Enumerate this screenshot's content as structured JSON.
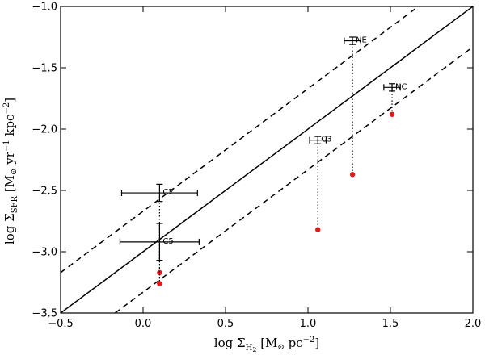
{
  "chart_data": {
    "type": "scatter",
    "xlabel": "log Σ_H2 [M⊙ pc^−2]",
    "ylabel": "log Σ_SFR [M⊙ yr^−1 kpc^−2]",
    "xlabel_parts": {
      "main": "log Σ",
      "sub": "H",
      "subsub": "2",
      "unit_open": " [M",
      "unit_sun": "⊙",
      "unit_mid": " pc",
      "unit_exp": "−2",
      "unit_close": "]"
    },
    "ylabel_parts": {
      "main": "log Σ",
      "sub": "SFR",
      "unit_open": " [M",
      "unit_sun": "⊙",
      "unit_mid1": " yr",
      "unit_exp1": "−1",
      "unit_mid2": " kpc",
      "unit_exp2": "−2",
      "unit_close": "]"
    },
    "xlim": [
      -0.5,
      2.0
    ],
    "ylim": [
      -3.5,
      -1.0
    ],
    "xticks": [
      -0.5,
      0.0,
      0.5,
      1.0,
      1.5,
      2.0
    ],
    "xtick_labels": [
      "−0.5",
      "0.0",
      "0.5",
      "1.0",
      "1.5",
      "2.0"
    ],
    "yticks": [
      -3.5,
      -3.0,
      -2.5,
      -2.0,
      -1.5,
      -1.0
    ],
    "ytick_labels": [
      "−3.5",
      "−3.0",
      "−2.5",
      "−2.0",
      "−1.5",
      "−1.0"
    ],
    "fit_line": {
      "slope": 1.0,
      "intercept": -3.0,
      "style": "solid"
    },
    "scatter_lines": [
      {
        "slope": 1.0,
        "intercept": -2.67,
        "style": "dashed"
      },
      {
        "slope": 1.0,
        "intercept": -3.33,
        "style": "dashed"
      }
    ],
    "points": [
      {
        "label": "C2",
        "x": 0.1,
        "y": -2.52,
        "xerr": [
          0.23,
          0.23
        ],
        "yerr": [
          0.07,
          0.07
        ],
        "corrected_y": [
          -3.17,
          -3.26
        ]
      },
      {
        "label": "C5",
        "x": 0.1,
        "y": -2.92,
        "xerr": [
          0.24,
          0.24
        ],
        "yerr": [
          0.15,
          0.15
        ],
        "corrected_y": [
          -3.26
        ]
      },
      {
        "label": "C3",
        "x": 1.06,
        "y": -2.09,
        "xerr": [
          0.05,
          0.05
        ],
        "yerr": [
          0.03,
          0.03
        ],
        "corrected_y": [
          -2.82
        ]
      },
      {
        "label": "NE",
        "x": 1.27,
        "y": -1.28,
        "xerr": [
          0.05,
          0.05
        ],
        "yerr": [
          0.03,
          0.03
        ],
        "corrected_y": [
          -2.37
        ]
      },
      {
        "label": "NC",
        "x": 1.51,
        "y": -1.66,
        "xerr": [
          0.05,
          0.05
        ],
        "yerr": [
          0.03,
          0.03
        ],
        "corrected_y": [
          -1.88
        ]
      }
    ],
    "colors": {
      "points": "#000000",
      "corrected": "#e31a1c",
      "lines": "#000000"
    }
  }
}
